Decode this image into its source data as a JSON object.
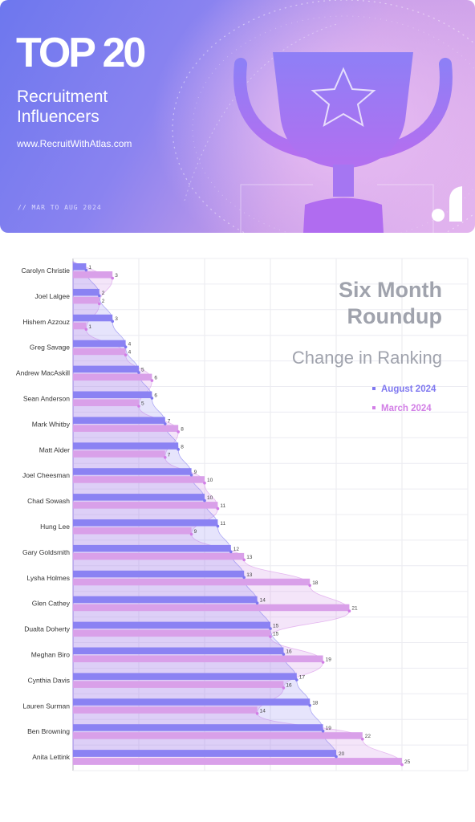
{
  "banner": {
    "title": "TOP 20",
    "subtitle": "Recruitment Influencers",
    "url": "www.RecruitWithAtlas.com",
    "period": "// MAR TO AUG 2024",
    "logo_icon": "atlas-logo-icon",
    "art_icon": "trophy-star-icon"
  },
  "colors": {
    "august": "#8b82f3",
    "march": "#d9a0e9",
    "august_dot": "#7f78f0",
    "march_dot": "#d27ee6",
    "heading": "#a0a3ad"
  },
  "chart_data": {
    "type": "bar",
    "orientation": "horizontal",
    "title": "Six Month Roundup",
    "subtitle": "Change in Ranking",
    "legend_position": "right",
    "grid": true,
    "categories": [
      "Carolyn Christie",
      "Joel Lalgee",
      "Hishem Azzouz",
      "Greg Savage",
      "Andrew MacAskill",
      "Sean Anderson",
      "Mark Whitby",
      "Matt Alder",
      "Joel Cheesman",
      "Chad Sowash",
      "Hung Lee",
      "Gary Goldsmith",
      "Lysha Holmes",
      "Glen Cathey",
      "Dualta Doherty",
      "Meghan Biro",
      "Cynthia Davis",
      "Lauren Surman",
      "Ben Browning",
      "Anita Lettink"
    ],
    "series": [
      {
        "name": "August 2024",
        "values": [
          1,
          2,
          3,
          4,
          5,
          6,
          7,
          8,
          9,
          10,
          11,
          12,
          13,
          14,
          15,
          16,
          17,
          18,
          19,
          20
        ]
      },
      {
        "name": "March 2024",
        "values": [
          3,
          2,
          1,
          4,
          6,
          5,
          8,
          7,
          10,
          11,
          9,
          13,
          18,
          21,
          15,
          19,
          16,
          14,
          22,
          25
        ]
      }
    ],
    "xlim": [
      0,
      30
    ]
  }
}
